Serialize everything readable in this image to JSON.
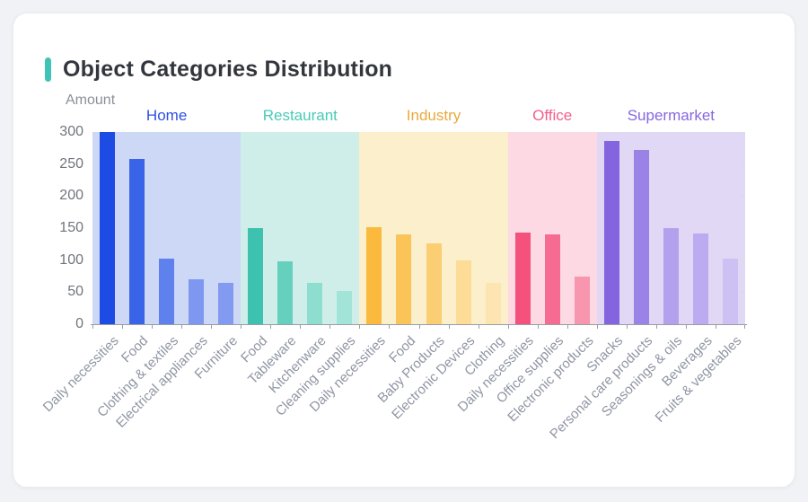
{
  "page": {
    "background": "#f1f2f5"
  },
  "card": {
    "title": "Object Categories Distribution",
    "accent_color": "#3ec3b6"
  },
  "chart_data": {
    "type": "bar",
    "title": "Object Categories Distribution",
    "ylabel": "Amount",
    "xlabel": "",
    "ylim": [
      0,
      300
    ],
    "yticks": [
      0,
      50,
      100,
      150,
      200,
      250,
      300
    ],
    "grid": false,
    "legend_position": "none",
    "axis_color": "#989ea7",
    "ytick_label_color": "#70757e",
    "xtick_label_color": "#8f95a3",
    "groups": [
      {
        "name": "Home",
        "header_color": "#2e50e2",
        "band_color": "#cdd8f6",
        "bars": [
          {
            "label": "Daily necessities",
            "value": 300,
            "color": "#1d4ce4"
          },
          {
            "label": "Food",
            "value": 258,
            "color": "#3a64e8"
          },
          {
            "label": "Clothing & textiles",
            "value": 103,
            "color": "#5f81ed"
          },
          {
            "label": "Electrical appliances",
            "value": 70,
            "color": "#7e98f1"
          },
          {
            "label": "Furniture",
            "value": 65,
            "color": "#829bf1"
          }
        ]
      },
      {
        "name": "Restaurant",
        "header_color": "#48cab7",
        "band_color": "#d0eee9",
        "bars": [
          {
            "label": "Food",
            "value": 150,
            "color": "#3cc2ae"
          },
          {
            "label": "Tableware",
            "value": 98,
            "color": "#66d0bf"
          },
          {
            "label": "Kitchenware",
            "value": 65,
            "color": "#8eded0"
          },
          {
            "label": "Cleaning supplies",
            "value": 52,
            "color": "#a3e4d8"
          }
        ]
      },
      {
        "name": "Industry",
        "header_color": "#e9a93d",
        "band_color": "#fcefcb",
        "bars": [
          {
            "label": "Daily necessities",
            "value": 152,
            "color": "#fbba3e"
          },
          {
            "label": "Food",
            "value": 140,
            "color": "#fbc459"
          },
          {
            "label": "Baby Products",
            "value": 126,
            "color": "#fcce73"
          },
          {
            "label": "Electronic Devices",
            "value": 100,
            "color": "#fddc98"
          },
          {
            "label": "Clothing",
            "value": 64,
            "color": "#fde5b2"
          }
        ]
      },
      {
        "name": "Office",
        "header_color": "#f45e88",
        "band_color": "#fcd9e3",
        "bars": [
          {
            "label": "Daily necessities",
            "value": 143,
            "color": "#f5517d"
          },
          {
            "label": "Office supplies",
            "value": 140,
            "color": "#f66b91"
          },
          {
            "label": "Electronic products",
            "value": 75,
            "color": "#f895af"
          }
        ]
      },
      {
        "name": "Supermarket",
        "header_color": "#8667e0",
        "band_color": "#e0d8f5",
        "bars": [
          {
            "label": "Snacks",
            "value": 286,
            "color": "#8564e0"
          },
          {
            "label": "Personal care products",
            "value": 272,
            "color": "#9b82e7"
          },
          {
            "label": "Seasonings & oils",
            "value": 150,
            "color": "#b3a1ee"
          },
          {
            "label": "Beverages",
            "value": 142,
            "color": "#bcabf0"
          },
          {
            "label": "Fruits & vegetables",
            "value": 102,
            "color": "#cdc1f3"
          }
        ]
      }
    ]
  }
}
